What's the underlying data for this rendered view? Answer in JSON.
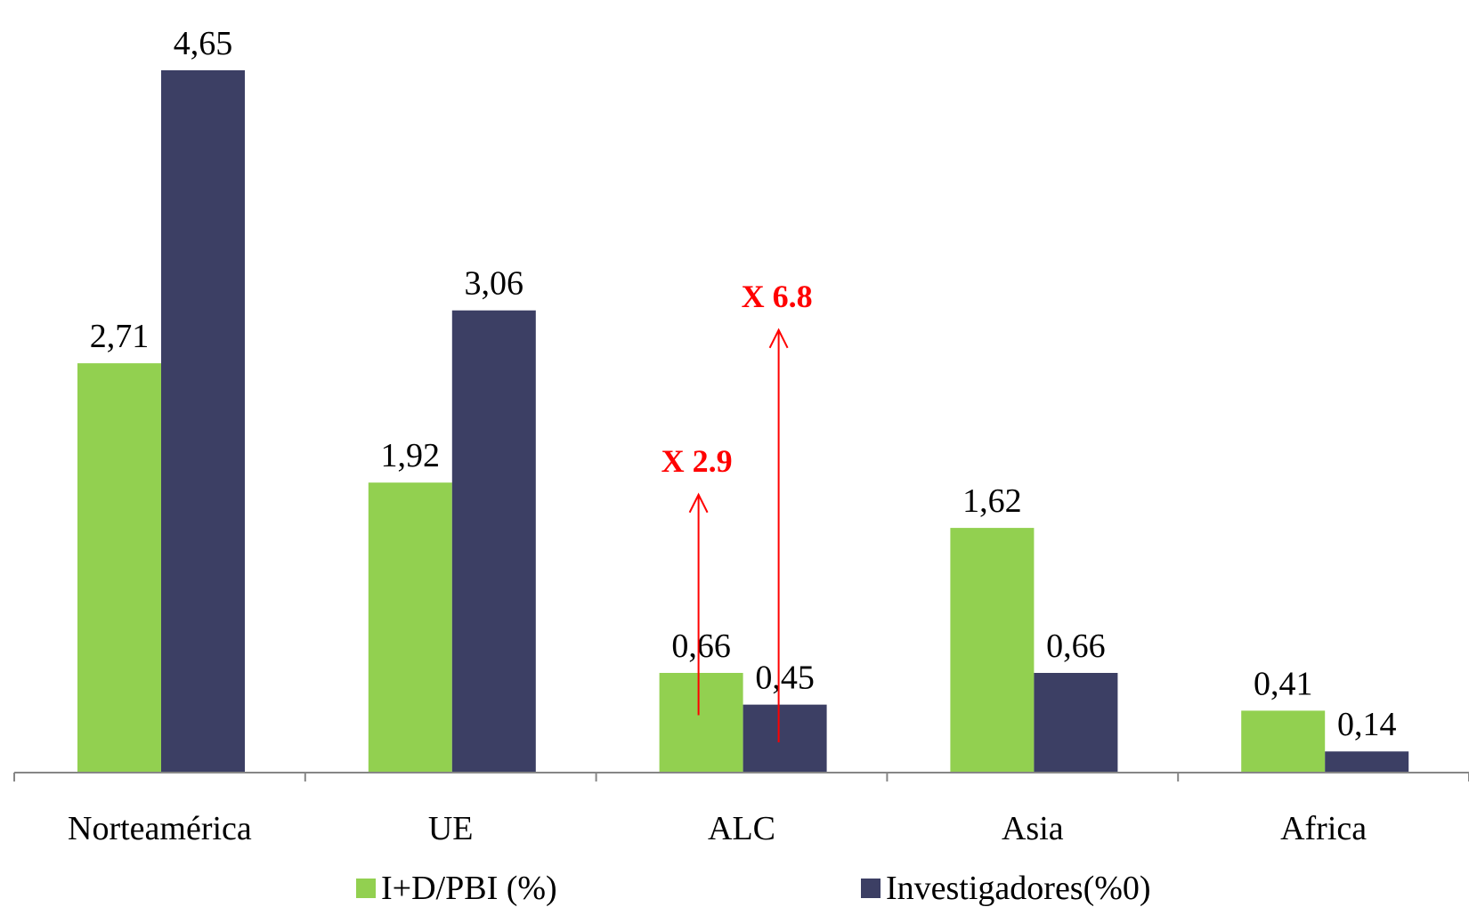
{
  "chart_data": {
    "type": "bar",
    "title": "",
    "xlabel": "",
    "ylabel": "",
    "categories": [
      "Norteamérica",
      "UE",
      "ALC",
      "Asia",
      "Africa"
    ],
    "series": [
      {
        "name": "I+D/PBI (%)",
        "color": "#92d050",
        "values": [
          2.71,
          1.92,
          0.66,
          1.62,
          0.41
        ],
        "labels": [
          "2,71",
          "1,92",
          "0,66",
          "1,62",
          "0,41"
        ]
      },
      {
        "name": "Investigadores(%0)",
        "color": "#3c3f64",
        "values": [
          4.65,
          3.06,
          0.45,
          0.66,
          0.14
        ],
        "labels": [
          "4,65",
          "3,06",
          "0,45",
          "0,66",
          "0,14"
        ]
      }
    ],
    "ylim": [
      0,
      4.95
    ],
    "grid": false,
    "legend": "bottom",
    "annotations": [
      {
        "text": "X 2.9",
        "category": "ALC",
        "series_index": 0,
        "from": 0.38,
        "to": 1.84,
        "color": "#ff0000"
      },
      {
        "text": "X 6.8",
        "category": "ALC",
        "series_index": 1,
        "from": 0.2,
        "to": 2.93,
        "color": "#ff0000"
      }
    ]
  }
}
